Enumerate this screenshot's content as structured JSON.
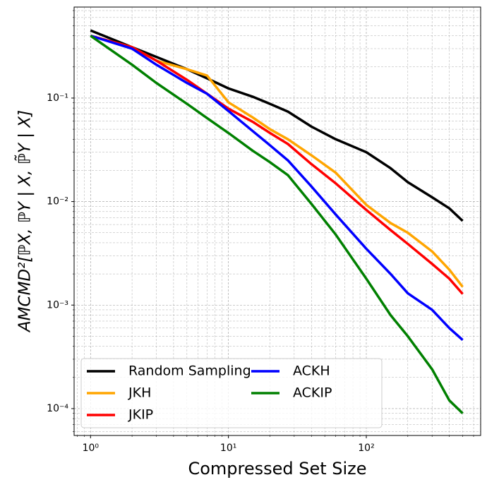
{
  "chart_data": {
    "type": "line",
    "xlabel": "Compressed Set Size",
    "ylabel": "AMCMD²[ℙX, ℙY | X, ℙ̃Y | X]",
    "x": [
      1,
      2,
      3,
      5,
      7,
      10,
      15,
      20,
      27,
      40,
      60,
      100,
      150,
      200,
      300,
      400,
      500
    ],
    "series": [
      {
        "name": "Random Sampling",
        "color": "#000000",
        "values": [
          0.45,
          0.31,
          0.25,
          0.19,
          0.155,
          0.124,
          0.103,
          0.088,
          0.074,
          0.053,
          0.04,
          0.03,
          0.021,
          0.0154,
          0.011,
          0.0086,
          0.0065
        ]
      },
      {
        "name": "JKH",
        "color": "#ffa500",
        "values": [
          0.4,
          0.31,
          0.23,
          0.19,
          0.165,
          0.091,
          0.065,
          0.05,
          0.04,
          0.028,
          0.019,
          0.0093,
          0.0062,
          0.005,
          0.0033,
          0.0022,
          0.0015
        ]
      },
      {
        "name": "JKIP",
        "color": "#ff0000",
        "values": [
          0.4,
          0.31,
          0.23,
          0.15,
          0.11,
          0.079,
          0.059,
          0.046,
          0.036,
          0.023,
          0.015,
          0.0083,
          0.0053,
          0.0039,
          0.0025,
          0.0018,
          0.00128
        ]
      },
      {
        "name": "ACKH",
        "color": "#0000ff",
        "values": [
          0.4,
          0.3,
          0.21,
          0.14,
          0.11,
          0.075,
          0.048,
          0.035,
          0.025,
          0.014,
          0.0075,
          0.0035,
          0.002,
          0.0013,
          0.0009,
          0.0006,
          0.00046
        ]
      },
      {
        "name": "ACKIP",
        "color": "#008000",
        "values": [
          0.4,
          0.21,
          0.14,
          0.088,
          0.064,
          0.046,
          0.031,
          0.024,
          0.018,
          0.0095,
          0.0048,
          0.0018,
          0.0008,
          0.0005,
          0.00024,
          0.00012,
          9e-05
        ]
      }
    ],
    "xscale": "log",
    "yscale": "log",
    "xlim": [
      0.76,
      675
    ],
    "ylim": [
      5.5e-05,
      0.757
    ],
    "xticks": [
      {
        "value": 1,
        "label": "10⁰"
      },
      {
        "value": 10,
        "label": "10¹"
      },
      {
        "value": 100,
        "label": "10²"
      }
    ],
    "yticks": [
      {
        "value": 0.0001,
        "label": "10⁻⁴"
      },
      {
        "value": 0.001,
        "label": "10⁻³"
      },
      {
        "value": 0.01,
        "label": "10⁻²"
      },
      {
        "value": 0.1,
        "label": "10⁻¹"
      }
    ],
    "grid": true,
    "minor_grid": true,
    "legend": {
      "loc": "lower left",
      "ncol": 2
    }
  }
}
